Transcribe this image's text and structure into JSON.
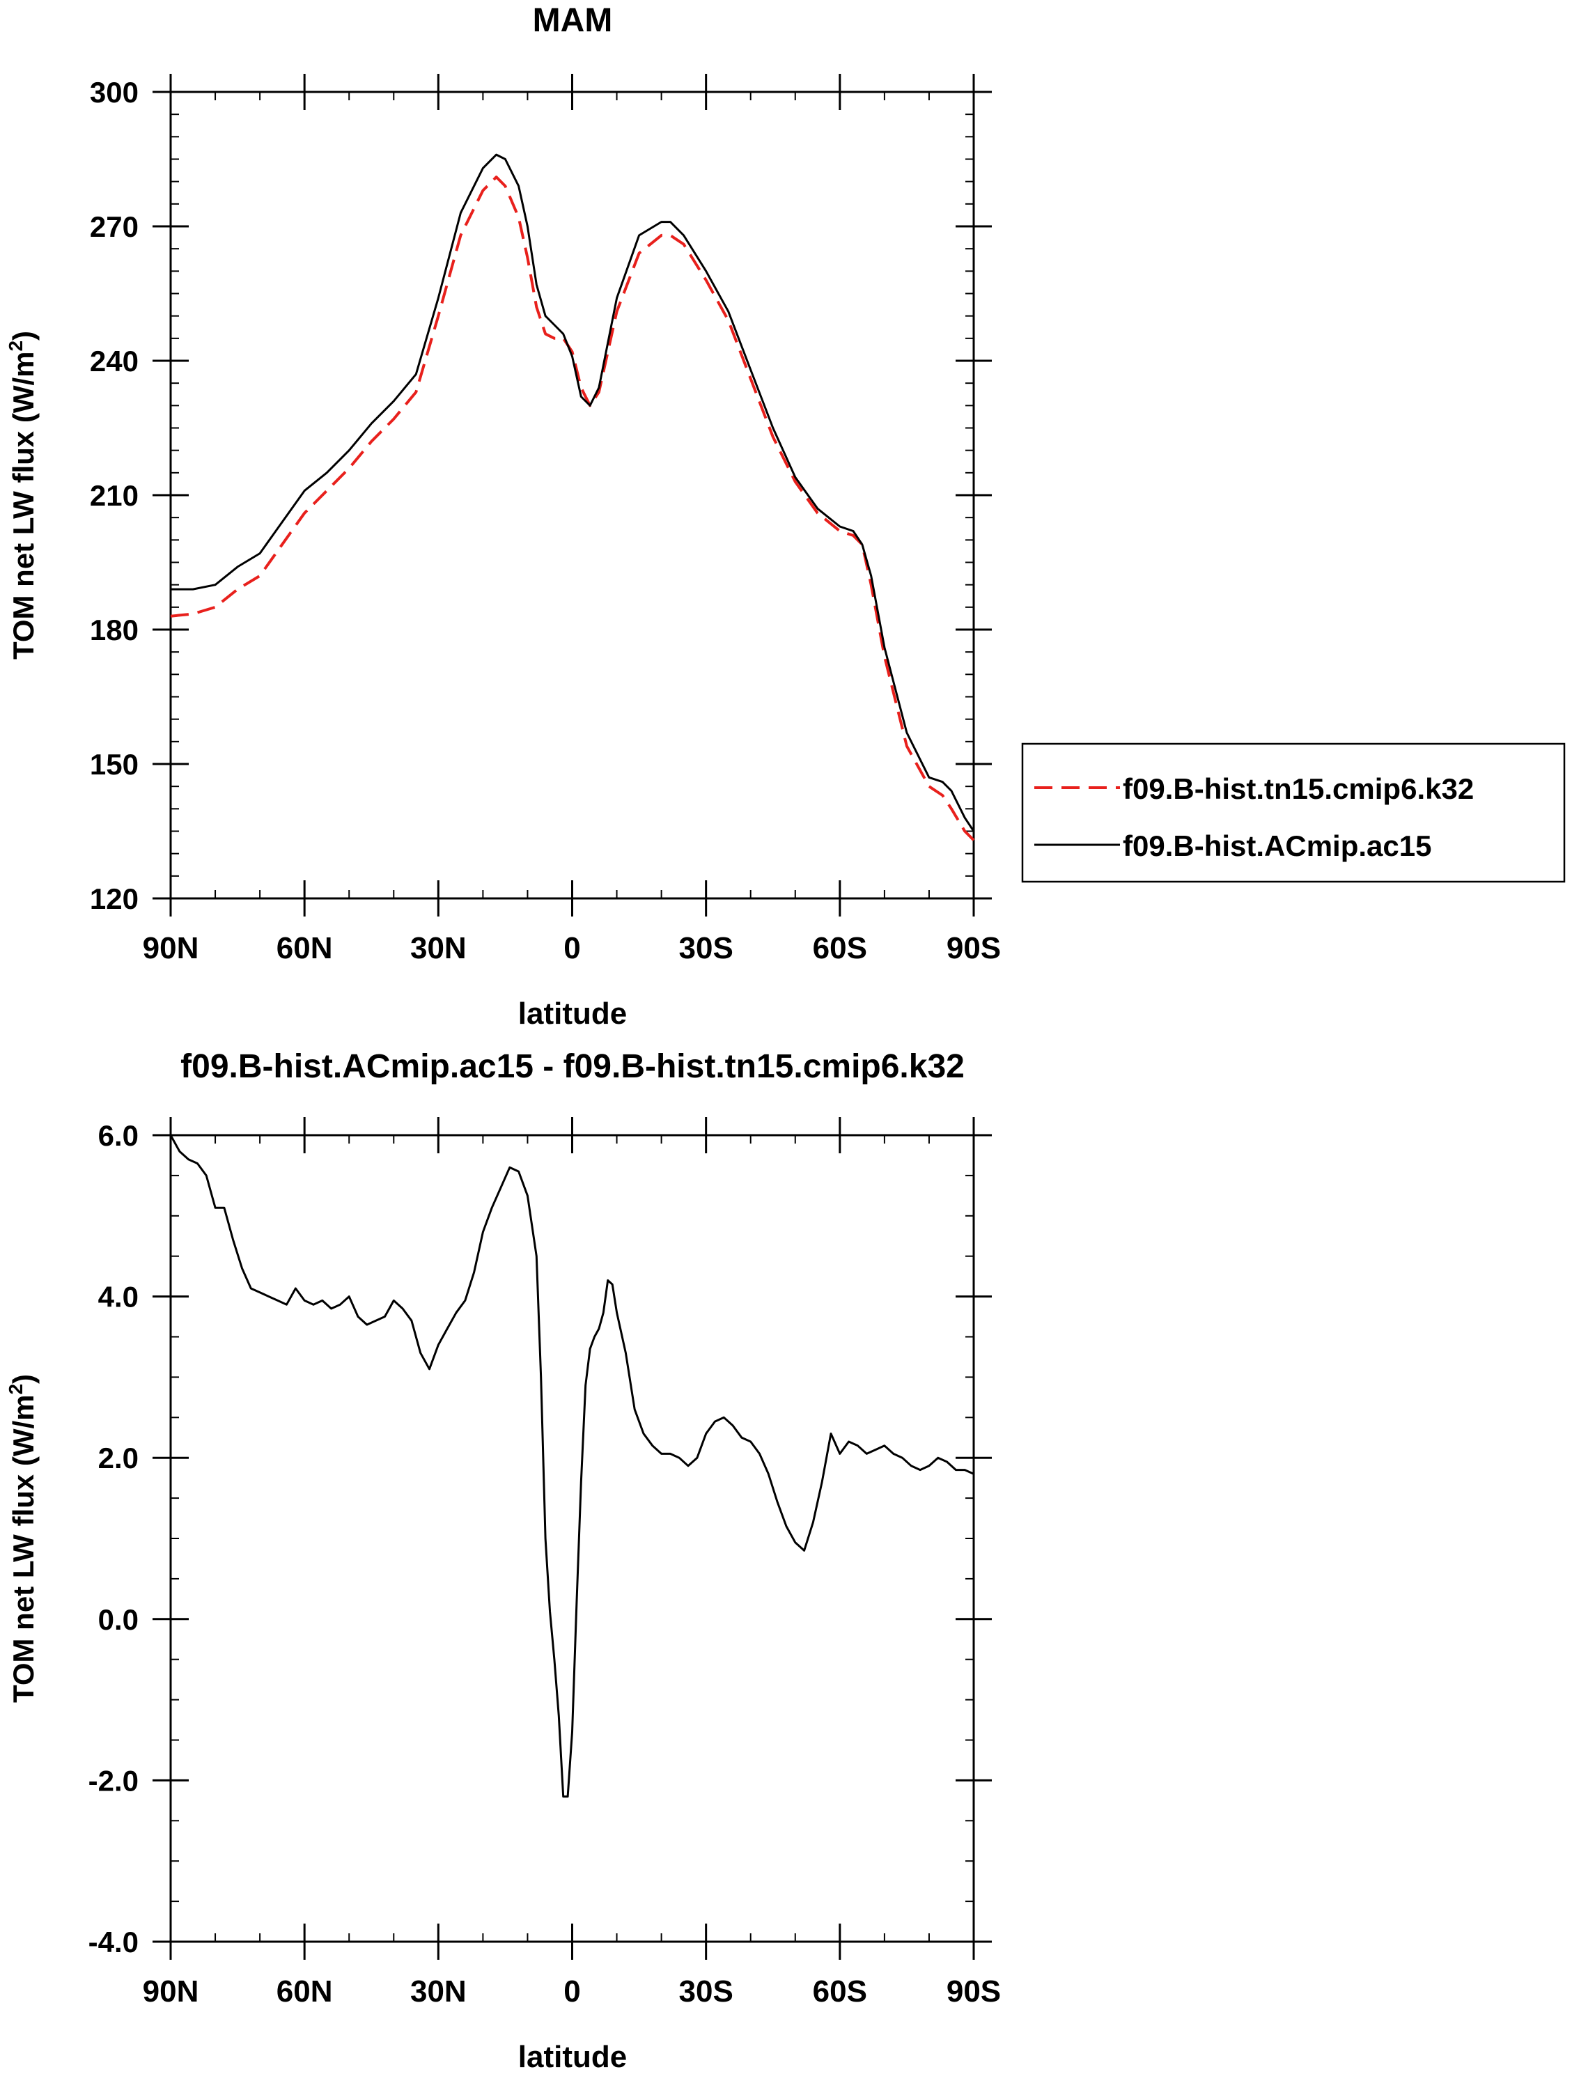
{
  "chart_data": [
    {
      "type": "line",
      "title": "MAM",
      "xlabel": "latitude",
      "ylabel_main": "TOM net LW flux (W/m",
      "ylabel_sup": "2",
      "ylabel_close": ")",
      "xlim": [
        90,
        -90
      ],
      "ylim": [
        120,
        300
      ],
      "x_ticks": [
        90,
        60,
        30,
        0,
        -30,
        -60,
        -90
      ],
      "x_tick_labels": [
        "90N",
        "60N",
        "30N",
        "0",
        "30S",
        "60S",
        "90S"
      ],
      "y_ticks": [
        120,
        150,
        180,
        210,
        240,
        270,
        300
      ],
      "y_tick_labels": [
        "120",
        "150",
        "180",
        "210",
        "240",
        "270",
        "300"
      ],
      "legend": "outside-right",
      "series": [
        {
          "name": "f09.B-hist.tn15.cmip6.k32",
          "color": "#e8201c",
          "dash": "dashed",
          "x": [
            90,
            85,
            80,
            75,
            70,
            65,
            60,
            55,
            50,
            45,
            40,
            35,
            30,
            25,
            20,
            17,
            15,
            12,
            10,
            8,
            6,
            4,
            2,
            0,
            -2,
            -4,
            -6,
            -10,
            -15,
            -20,
            -22,
            -25,
            -30,
            -35,
            -40,
            -45,
            -50,
            -55,
            -60,
            -63,
            -65,
            -67,
            -70,
            -75,
            -80,
            -83,
            -85,
            -88,
            -90
          ],
          "y": [
            183,
            183.5,
            185,
            189,
            192,
            199,
            206,
            211,
            216,
            222,
            227,
            233,
            250,
            268,
            278,
            281,
            279,
            272,
            263,
            252,
            246,
            245,
            245,
            242,
            234,
            230,
            233,
            251,
            264,
            268,
            268,
            266,
            258,
            249,
            236,
            223,
            213,
            206,
            202,
            201,
            199,
            190,
            174,
            154,
            145,
            143,
            140,
            135,
            133
          ]
        },
        {
          "name": "f09.B-hist.ACmip.ac15",
          "color": "#000000",
          "dash": "solid",
          "x": [
            90,
            85,
            80,
            75,
            70,
            65,
            60,
            55,
            50,
            45,
            40,
            35,
            30,
            25,
            20,
            17,
            15,
            12,
            10,
            8,
            6,
            4,
            2,
            0,
            -2,
            -4,
            -6,
            -10,
            -15,
            -20,
            -22,
            -25,
            -30,
            -35,
            -40,
            -45,
            -50,
            -55,
            -60,
            -63,
            -65,
            -67,
            -70,
            -75,
            -80,
            -83,
            -85,
            -88,
            -90
          ],
          "y": [
            189,
            189,
            190,
            194,
            197,
            204,
            211,
            215,
            220,
            226,
            231,
            237,
            254,
            273,
            283,
            286,
            285,
            279,
            270,
            257,
            250,
            248,
            246,
            241,
            232,
            230,
            234,
            254,
            268,
            271,
            271,
            268,
            260,
            251,
            238,
            225,
            214,
            207,
            203,
            202,
            199,
            192,
            176,
            157,
            147,
            146,
            144,
            138,
            135
          ]
        }
      ]
    },
    {
      "type": "line",
      "title": "f09.B-hist.ACmip.ac15 - f09.B-hist.tn15.cmip6.k32",
      "xlabel": "latitude",
      "ylabel_main": "TOM net LW flux (W/m",
      "ylabel_sup": "2",
      "ylabel_close": ")",
      "xlim": [
        90,
        -90
      ],
      "ylim": [
        -4,
        6
      ],
      "x_ticks": [
        90,
        60,
        30,
        0,
        -30,
        -60,
        -90
      ],
      "x_tick_labels": [
        "90N",
        "60N",
        "30N",
        "0",
        "30S",
        "60S",
        "90S"
      ],
      "y_ticks": [
        -4,
        -2,
        0,
        2,
        4,
        6
      ],
      "y_tick_labels": [
        "-4.0",
        "-2.0",
        "0.0",
        "2.0",
        "4.0",
        "6.0"
      ],
      "series": [
        {
          "color": "#000000",
          "dash": "solid",
          "x": [
            90,
            88,
            86,
            84,
            82,
            80,
            78,
            76,
            74,
            72,
            70,
            68,
            66,
            64,
            62,
            60,
            58,
            56,
            54,
            52,
            50,
            48,
            46,
            44,
            42,
            40,
            38,
            36,
            34,
            32,
            30,
            28,
            26,
            24,
            22,
            20,
            18,
            16,
            14,
            12,
            10,
            8,
            7,
            6,
            5,
            4,
            3,
            2,
            1,
            0,
            -1,
            -2,
            -3,
            -4,
            -5,
            -6,
            -7,
            -8,
            -9,
            -10,
            -12,
            -14,
            -16,
            -18,
            -20,
            -22,
            -24,
            -26,
            -28,
            -30,
            -32,
            -34,
            -36,
            -38,
            -40,
            -42,
            -44,
            -46,
            -48,
            -50,
            -52,
            -54,
            -56,
            -58,
            -60,
            -62,
            -64,
            -66,
            -68,
            -70,
            -72,
            -74,
            -76,
            -78,
            -80,
            -82,
            -84,
            -86,
            -88,
            -90
          ],
          "y": [
            6.0,
            5.8,
            5.7,
            5.65,
            5.5,
            5.1,
            5.1,
            4.7,
            4.35,
            4.1,
            4.05,
            4.0,
            3.95,
            3.9,
            4.1,
            3.95,
            3.9,
            3.95,
            3.85,
            3.9,
            4.0,
            3.75,
            3.65,
            3.7,
            3.75,
            3.95,
            3.85,
            3.7,
            3.3,
            3.1,
            3.4,
            3.6,
            3.8,
            3.95,
            4.3,
            4.8,
            5.1,
            5.35,
            5.6,
            5.55,
            5.25,
            4.5,
            3.0,
            1.0,
            0.1,
            -0.5,
            -1.2,
            -2.2,
            -2.2,
            -1.4,
            0.2,
            1.7,
            2.9,
            3.35,
            3.5,
            3.6,
            3.8,
            4.2,
            4.15,
            3.8,
            3.3,
            2.6,
            2.3,
            2.15,
            2.05,
            2.05,
            2.0,
            1.9,
            2.0,
            2.3,
            2.45,
            2.5,
            2.4,
            2.25,
            2.2,
            2.05,
            1.8,
            1.45,
            1.15,
            0.95,
            0.85,
            1.2,
            1.7,
            2.3,
            2.05,
            2.2,
            2.15,
            2.05,
            2.1,
            2.15,
            2.05,
            2.0,
            1.9,
            1.85,
            1.9,
            2.0,
            1.95,
            1.85,
            1.85,
            1.8
          ]
        }
      ]
    }
  ]
}
